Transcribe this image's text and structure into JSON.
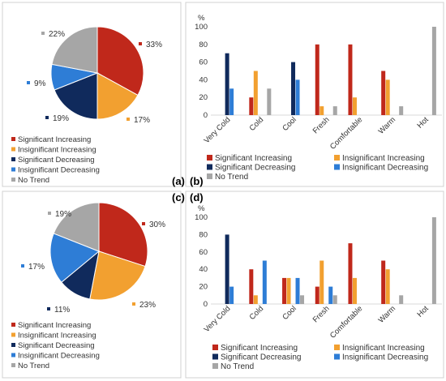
{
  "panel_labels": {
    "a": "(a)",
    "b": "(b)",
    "c": "(c)",
    "d": "(d)"
  },
  "colors": {
    "significant_increasing": "#C0281B",
    "insignificant_increasing": "#F2A030",
    "significant_decreasing": "#102A5C",
    "insignificant_decreasing": "#2E7DD6",
    "no_trend": "#A6A6A6"
  },
  "chart_data": [
    {
      "panel": "a",
      "type": "pie",
      "slices": [
        {
          "name": "Significant Increasing",
          "value": 33,
          "label": "33%"
        },
        {
          "name": "Insignificant Increasing",
          "value": 17,
          "label": "17%"
        },
        {
          "name": "Significant Decreasing",
          "value": 19,
          "label": "19%"
        },
        {
          "name": "Insignificant Decreasing",
          "value": 9,
          "label": "9%"
        },
        {
          "name": "No Trend",
          "value": 22,
          "label": "22%"
        }
      ],
      "legend": [
        "Significant Increasing",
        "Insignificant Increasing",
        "Significant Decreasing",
        "Insignificant Decreasing",
        "No Trend"
      ]
    },
    {
      "panel": "b",
      "type": "bar",
      "ylabel": "%",
      "ylim": [
        0,
        100
      ],
      "yticks": [
        0,
        20,
        40,
        60,
        80,
        100
      ],
      "categories": [
        "Very Cold",
        "Cold",
        "Cool",
        "Fresh",
        "Comfortable",
        "Warm",
        "Hot"
      ],
      "series": [
        {
          "name": "Significant Increasing",
          "values": [
            0,
            20,
            0,
            80,
            80,
            50,
            0
          ]
        },
        {
          "name": "Insignificant Increasing",
          "values": [
            0,
            50,
            0,
            10,
            20,
            40,
            0
          ]
        },
        {
          "name": "Significant Decreasing",
          "values": [
            70,
            0,
            60,
            0,
            0,
            0,
            0
          ]
        },
        {
          "name": "Insignificant Decreasing",
          "values": [
            30,
            0,
            40,
            0,
            0,
            0,
            0
          ]
        },
        {
          "name": "No Trend",
          "values": [
            0,
            30,
            0,
            10,
            0,
            10,
            100
          ]
        }
      ]
    },
    {
      "panel": "c",
      "type": "pie",
      "slices": [
        {
          "name": "Significant Increasing",
          "value": 30,
          "label": "30%"
        },
        {
          "name": "Insignificant Increasing",
          "value": 23,
          "label": "23%"
        },
        {
          "name": "Significant Decreasing",
          "value": 11,
          "label": "11%"
        },
        {
          "name": "Insignificant Decreasing",
          "value": 17,
          "label": "17%"
        },
        {
          "name": "No Trend",
          "value": 19,
          "label": "19%"
        }
      ],
      "legend": [
        "Significant Increasing",
        "Insignificant Increasing",
        "Significant Decreasing",
        "Insignificant Decreasing",
        "No Trend"
      ]
    },
    {
      "panel": "d",
      "type": "bar",
      "ylabel": "%",
      "ylim": [
        0,
        100
      ],
      "yticks": [
        0,
        20,
        40,
        60,
        80,
        100
      ],
      "categories": [
        "Very Cold",
        "Cold",
        "Cool",
        "Fresh",
        "Comfortable",
        "Warm",
        "Hot"
      ],
      "series": [
        {
          "name": "Significant Increasing",
          "values": [
            0,
            40,
            30,
            20,
            70,
            50,
            0
          ]
        },
        {
          "name": "Insignificant Increasing",
          "values": [
            0,
            10,
            30,
            50,
            30,
            40,
            0
          ]
        },
        {
          "name": "Significant Decreasing",
          "values": [
            80,
            0,
            0,
            0,
            0,
            0,
            0
          ]
        },
        {
          "name": "Insignificant Decreasing",
          "values": [
            20,
            50,
            30,
            20,
            0,
            0,
            0
          ]
        },
        {
          "name": "No Trend",
          "values": [
            0,
            0,
            10,
            10,
            0,
            10,
            100
          ]
        }
      ]
    }
  ]
}
